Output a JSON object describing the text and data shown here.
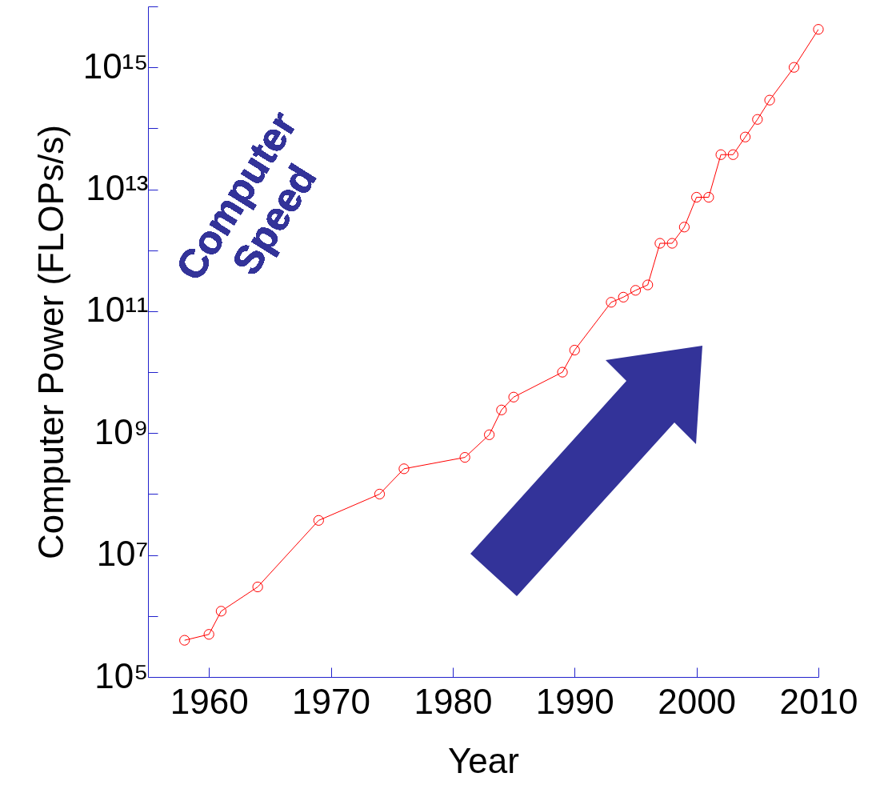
{
  "chart_data": {
    "type": "line",
    "xlabel": "Year",
    "ylabel": "Computer Power (FLOPs/s)",
    "x": [
      1958,
      1960,
      1961,
      1964,
      1969,
      1974,
      1976,
      1981,
      1983,
      1984,
      1985,
      1989,
      1990,
      1993,
      1994,
      1995,
      1996,
      1997,
      1998,
      1999,
      2000,
      2001,
      2002,
      2003,
      2004,
      2005,
      2006,
      2008,
      2010
    ],
    "series": [
      {
        "color": "#ff0000",
        "values": [
          400000.0,
          500000.0,
          1200000.0,
          3000000.0,
          37000000.0,
          100000000.0,
          260000000.0,
          400000000.0,
          940000000.0,
          2400000000.0,
          3900000000.0,
          10000000000.0,
          23000000000.0,
          140000000000.0,
          170000000000.0,
          220000000000.0,
          270000000000.0,
          1300000000000.0,
          1300000000000.0,
          2400000000000.0,
          7400000000000.0,
          7400000000000.0,
          37000000000000.0,
          37000000000000.0,
          72000000000000.0,
          140000000000000.0,
          290000000000000.0,
          1000000000000000.0,
          4200000000000000.0
        ]
      }
    ],
    "log": "y",
    "marker": "circle",
    "grid": false,
    "xlim": [
      1955,
      2010
    ],
    "xticks": [
      1960,
      1970,
      1980,
      1990,
      2000,
      2010
    ],
    "ylim": [
      100000.0,
      1e+16
    ],
    "yticks": [
      {
        "value": 100000.0,
        "label": "10⁵"
      },
      {
        "value": 1000000.0,
        "label": null
      },
      {
        "value": 10000000.0,
        "label": "10⁷"
      },
      {
        "value": 100000000.0,
        "label": null
      },
      {
        "value": 1000000000.0,
        "label": "10⁹"
      },
      {
        "value": 10000000000.0,
        "label": null
      },
      {
        "value": 100000000000.0,
        "label": "10¹¹"
      },
      {
        "value": 1000000000000.0,
        "label": null
      },
      {
        "value": 10000000000000.0,
        "label": "10¹³"
      },
      {
        "value": 100000000000000.0,
        "label": null
      },
      {
        "value": 1000000000000000.0,
        "label": "10¹⁵"
      },
      {
        "value": 1e+16,
        "label": null
      }
    ],
    "annotations": [
      "Computer Speed"
    ]
  }
}
